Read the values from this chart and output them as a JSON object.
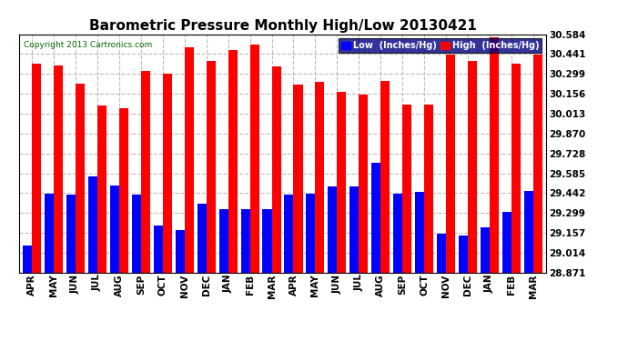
{
  "title": "Barometric Pressure Monthly High/Low 20130421",
  "copyright": "Copyright 2013 Cartronics.com",
  "legend_low": "Low  (Inches/Hg)",
  "legend_high": "High  (Inches/Hg)",
  "months": [
    "APR",
    "MAY",
    "JUN",
    "JUL",
    "AUG",
    "SEP",
    "OCT",
    "NOV",
    "DEC",
    "JAN",
    "FEB",
    "MAR",
    "APR",
    "MAY",
    "JUN",
    "JUL",
    "AUG",
    "SEP",
    "OCT",
    "NOV",
    "DEC",
    "JAN",
    "FEB",
    "MAR"
  ],
  "highs": [
    30.37,
    30.36,
    30.23,
    30.07,
    30.05,
    30.32,
    30.3,
    30.49,
    30.39,
    30.47,
    30.51,
    30.35,
    30.22,
    30.24,
    30.17,
    30.15,
    30.25,
    30.08,
    30.08,
    30.44,
    30.39,
    30.56,
    30.37,
    30.44
  ],
  "lows": [
    29.07,
    29.44,
    29.43,
    29.56,
    29.5,
    29.43,
    29.21,
    29.18,
    29.37,
    29.33,
    29.33,
    29.33,
    29.43,
    29.44,
    29.49,
    29.49,
    29.66,
    29.44,
    29.45,
    29.15,
    29.14,
    29.2,
    29.31,
    29.46
  ],
  "ymin": 28.871,
  "ymax": 30.584,
  "yticks": [
    28.871,
    29.014,
    29.157,
    29.299,
    29.442,
    29.585,
    29.728,
    29.87,
    30.013,
    30.156,
    30.299,
    30.441,
    30.584
  ],
  "bar_width": 0.42,
  "bg_color": "#ffffff",
  "low_color": "#0000ff",
  "high_color": "#ff0000",
  "grid_color": "#bbbbbb",
  "title_fontsize": 11,
  "tick_fontsize": 7.5,
  "label_fontsize": 7.5
}
